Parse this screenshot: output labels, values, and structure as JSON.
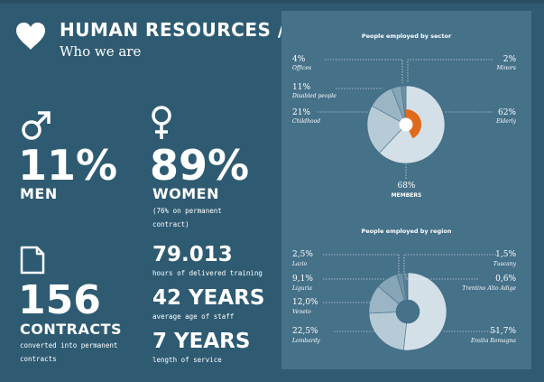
{
  "header": {
    "title": "HUMAN RESOURCES /",
    "subtitle": "Who we are",
    "icon": "heart-icon"
  },
  "men": {
    "icon": "male-icon",
    "value": "11%",
    "label": "MEN"
  },
  "women": {
    "icon": "female-icon",
    "value": "89%",
    "label": "WOMEN",
    "note_line1": "(76% on permanent",
    "note_line2": "contract)"
  },
  "contracts": {
    "icon": "document-icon",
    "value": "156",
    "label": "CONTRACTS",
    "note_line1": "converted into permanent",
    "note_line2": "contracts"
  },
  "training": {
    "value": "79.013",
    "note": "hours of delivered training"
  },
  "age": {
    "value": "42 YEARS",
    "note": "average age of staff"
  },
  "service": {
    "value": "7 YEARS",
    "note": "length of service"
  },
  "colors": {
    "background": "#2e5b72",
    "panel": "#457189",
    "accent_orange": "#e06a1b",
    "slice_light": "#d4e0e8"
  },
  "chart_data": [
    {
      "type": "pie",
      "title": "People employed by sector",
      "center_label_value": "68%",
      "center_label": "MEMBERS",
      "slices": [
        {
          "label": "Elderly",
          "display": "62%",
          "value": 62
        },
        {
          "label": "Childhood",
          "display": "21%",
          "value": 21
        },
        {
          "label": "Disabled people",
          "display": "11%",
          "value": 11
        },
        {
          "label": "Offices",
          "display": "4%",
          "value": 4
        },
        {
          "label": "Minors",
          "display": "2%",
          "value": 2
        }
      ],
      "highlight": {
        "label": "MEMBERS",
        "value": 68
      }
    },
    {
      "type": "pie",
      "title": "People employed by region",
      "slices": [
        {
          "label": "Emilia Romagna",
          "display": "51,7%",
          "value": 51.7
        },
        {
          "label": "Lombardy",
          "display": "22,5%",
          "value": 22.5
        },
        {
          "label": "Veneto",
          "display": "12,0%",
          "value": 12.0
        },
        {
          "label": "Liguria",
          "display": "9,1%",
          "value": 9.1
        },
        {
          "label": "Lazio",
          "display": "2,5%",
          "value": 2.5
        },
        {
          "label": "Tuscany",
          "display": "1,5%",
          "value": 1.5
        },
        {
          "label": "Trentino Alto Adige",
          "display": "0,6%",
          "value": 0.6
        }
      ]
    }
  ]
}
